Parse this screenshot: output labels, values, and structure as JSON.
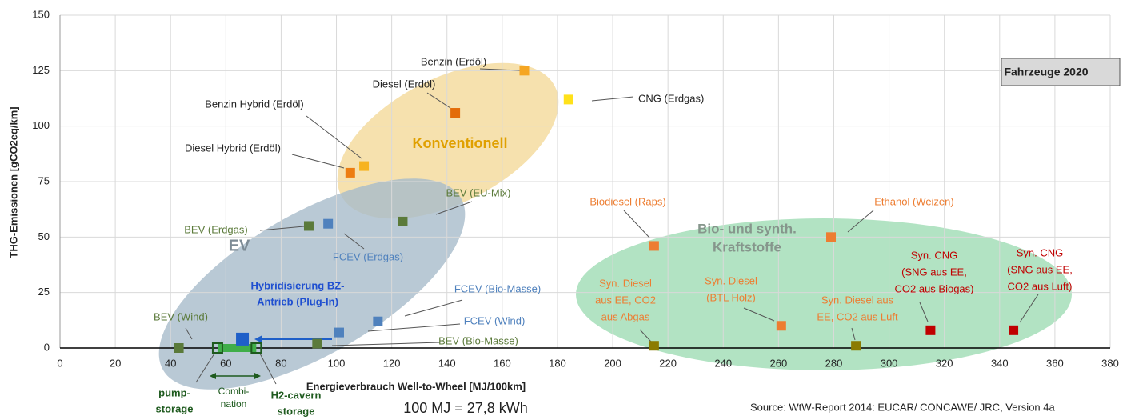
{
  "chart_data": {
    "type": "scatter",
    "title": "Fahrzeuge 2020",
    "x_label": "Energieverbrauch Well-to-Wheel [MJ/100km]",
    "y_label": "THG-Emissionen [gCO2eq/km]",
    "xlim": [
      0,
      380
    ],
    "xticks": [
      0,
      20,
      40,
      60,
      80,
      100,
      120,
      140,
      160,
      180,
      200,
      220,
      240,
      260,
      280,
      300,
      320,
      340,
      360,
      380
    ],
    "ylim": [
      0,
      150
    ],
    "yticks": [
      0,
      25,
      50,
      75,
      100,
      125,
      150
    ],
    "grid": true,
    "points": [
      {
        "label": [
          "Benzin (Erdöl)"
        ],
        "x": 168,
        "y": 125,
        "color": "#f5a623",
        "label_color": "#222222"
      },
      {
        "label": [
          "Diesel (Erdöl)"
        ],
        "x": 143,
        "y": 106,
        "color": "#e36c09",
        "label_color": "#222222"
      },
      {
        "label": [
          "CNG (Erdgas)"
        ],
        "x": 184,
        "y": 112,
        "color": "#ffe11a",
        "label_color": "#222222"
      },
      {
        "label": [
          "Benzin Hybrid (Erdöl)"
        ],
        "x": 110,
        "y": 82,
        "color": "#f7b31e",
        "label_color": "#222222"
      },
      {
        "label": [
          "Diesel Hybrid (Erdöl)"
        ],
        "x": 105,
        "y": 79,
        "color": "#ed7d11",
        "label_color": "#222222"
      },
      {
        "label": [
          "BEV (Erdgas)"
        ],
        "x": 90,
        "y": 55,
        "color": "#5b7a3a",
        "label_color": "#5b7a3a"
      },
      {
        "label": [
          "FCEV (Erdgas)"
        ],
        "x": 97,
        "y": 56,
        "color": "#4f81bd",
        "label_color": "#4f81bd"
      },
      {
        "label": [
          "BEV (EU-Mix)"
        ],
        "x": 124,
        "y": 57,
        "color": "#5b7a3a",
        "label_color": "#5b7a3a"
      },
      {
        "label": [
          "FCEV (Bio-Masse)"
        ],
        "x": 115,
        "y": 12,
        "color": "#4f81bd",
        "label_color": "#4f81bd"
      },
      {
        "label": [
          "FCEV (Wind)"
        ],
        "x": 101,
        "y": 7,
        "color": "#4f81bd",
        "label_color": "#4f81bd"
      },
      {
        "label": [
          "BEV (Bio-Masse)"
        ],
        "x": 93,
        "y": 2,
        "color": "#5b7a3a",
        "label_color": "#5b7a3a"
      },
      {
        "label": [
          "BEV (Wind)"
        ],
        "x": 43,
        "y": 0,
        "color": "#5b7a3a",
        "label_color": "#5b7a3a"
      },
      {
        "label": [
          "Biodiesel (Raps)"
        ],
        "x": 215,
        "y": 46,
        "color": "#ed7d31",
        "label_color": "#ed7d31"
      },
      {
        "label": [
          "Ethanol (Weizen)"
        ],
        "x": 279,
        "y": 50,
        "color": "#ed7d31",
        "label_color": "#ed7d31"
      },
      {
        "label": [
          "Syn. Diesel",
          "aus EE, CO2",
          "aus Abgas"
        ],
        "x": 215,
        "y": 1,
        "color": "#8b7b00",
        "label_color": "#ed7d31"
      },
      {
        "label": [
          "Syn. Diesel",
          "(BTL Holz)"
        ],
        "x": 261,
        "y": 10,
        "color": "#ed7d31",
        "label_color": "#ed7d31"
      },
      {
        "label": [
          "Syn. Diesel aus",
          "EE, CO2 aus Luft"
        ],
        "x": 288,
        "y": 1,
        "color": "#8b7b00",
        "label_color": "#ed7d31"
      },
      {
        "label": [
          "Syn. CNG",
          "(SNG aus EE,",
          "CO2 aus Biogas)"
        ],
        "x": 315,
        "y": 8,
        "color": "#c00000",
        "label_color": "#c00000"
      },
      {
        "label": [
          "Syn. CNG",
          "(SNG aus EE,",
          "CO2 aus Luft)"
        ],
        "x": 345,
        "y": 8,
        "color": "#c00000",
        "label_color": "#c00000"
      },
      {
        "x": 66,
        "y": 4,
        "color": "#1f5fc8"
      },
      {
        "label": [
          "pump-",
          "storage"
        ],
        "x": 57,
        "y": 0,
        "color": "#1e5a1e",
        "label_color": "#1e5a1e",
        "marker": "hollow"
      },
      {
        "label": [
          "H2-cavern",
          "storage"
        ],
        "x": 71,
        "y": 0,
        "color": "#1e5a1e",
        "label_color": "#1e5a1e",
        "marker": "hollow"
      }
    ],
    "groups": [
      [
        "Konventionell"
      ],
      [
        "EV"
      ],
      [
        "Bio- und synth.",
        "Kraftstoffe"
      ]
    ],
    "hybrid_note": [
      "Hybridisierung BZ-",
      "Antrieb (Plug-In)"
    ],
    "combination": [
      "Combi-",
      "nation"
    ],
    "conversion": "100 MJ =  27,8 kWh",
    "source": "Source: WtW-Report 2014: EUCAR/ CONCAWE/ JRC, Version 4a"
  }
}
